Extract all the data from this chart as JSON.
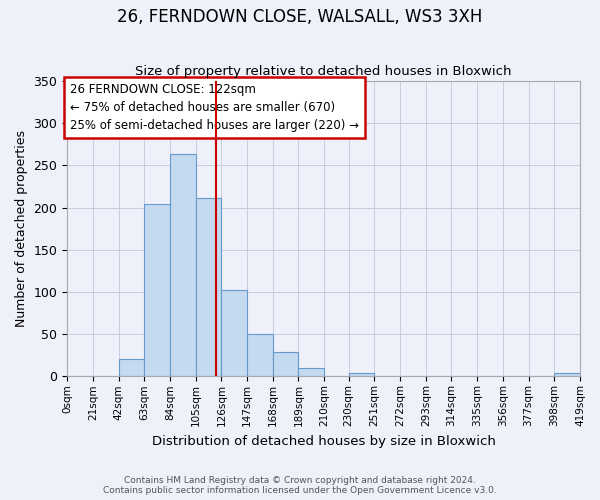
{
  "title": "26, FERNDOWN CLOSE, WALSALL, WS3 3XH",
  "subtitle": "Size of property relative to detached houses in Bloxwich",
  "xlabel": "Distribution of detached houses by size in Bloxwich",
  "ylabel": "Number of detached properties",
  "bin_edges": [
    0,
    21,
    42,
    63,
    84,
    105,
    126,
    147,
    168,
    189,
    210,
    230,
    251,
    272,
    293,
    314,
    335,
    356,
    377,
    398,
    419
  ],
  "bar_heights": [
    0,
    0,
    21,
    204,
    263,
    211,
    102,
    50,
    29,
    10,
    0,
    4,
    0,
    0,
    0,
    0,
    0,
    0,
    0,
    4
  ],
  "bar_color": "#c5d9f1",
  "bar_edgecolor": "#6699cc",
  "bar_linewidth": 0.8,
  "vline_x": 122,
  "vline_color": "#cc0000",
  "annotation_title": "26 FERNDOWN CLOSE: 122sqm",
  "annotation_line1": "← 75% of detached houses are smaller (670)",
  "annotation_line2": "25% of semi-detached houses are larger (220) →",
  "annotation_box_edgecolor": "#cc0000",
  "annotation_box_facecolor": "#ffffff",
  "ylim": [
    0,
    350
  ],
  "yticks": [
    0,
    50,
    100,
    150,
    200,
    250,
    300,
    350
  ],
  "background_color": "#eef0fa",
  "grid_color": "#c8cce0",
  "footer_line1": "Contains HM Land Registry data © Crown copyright and database right 2024.",
  "footer_line2": "Contains public sector information licensed under the Open Government Licence v3.0."
}
